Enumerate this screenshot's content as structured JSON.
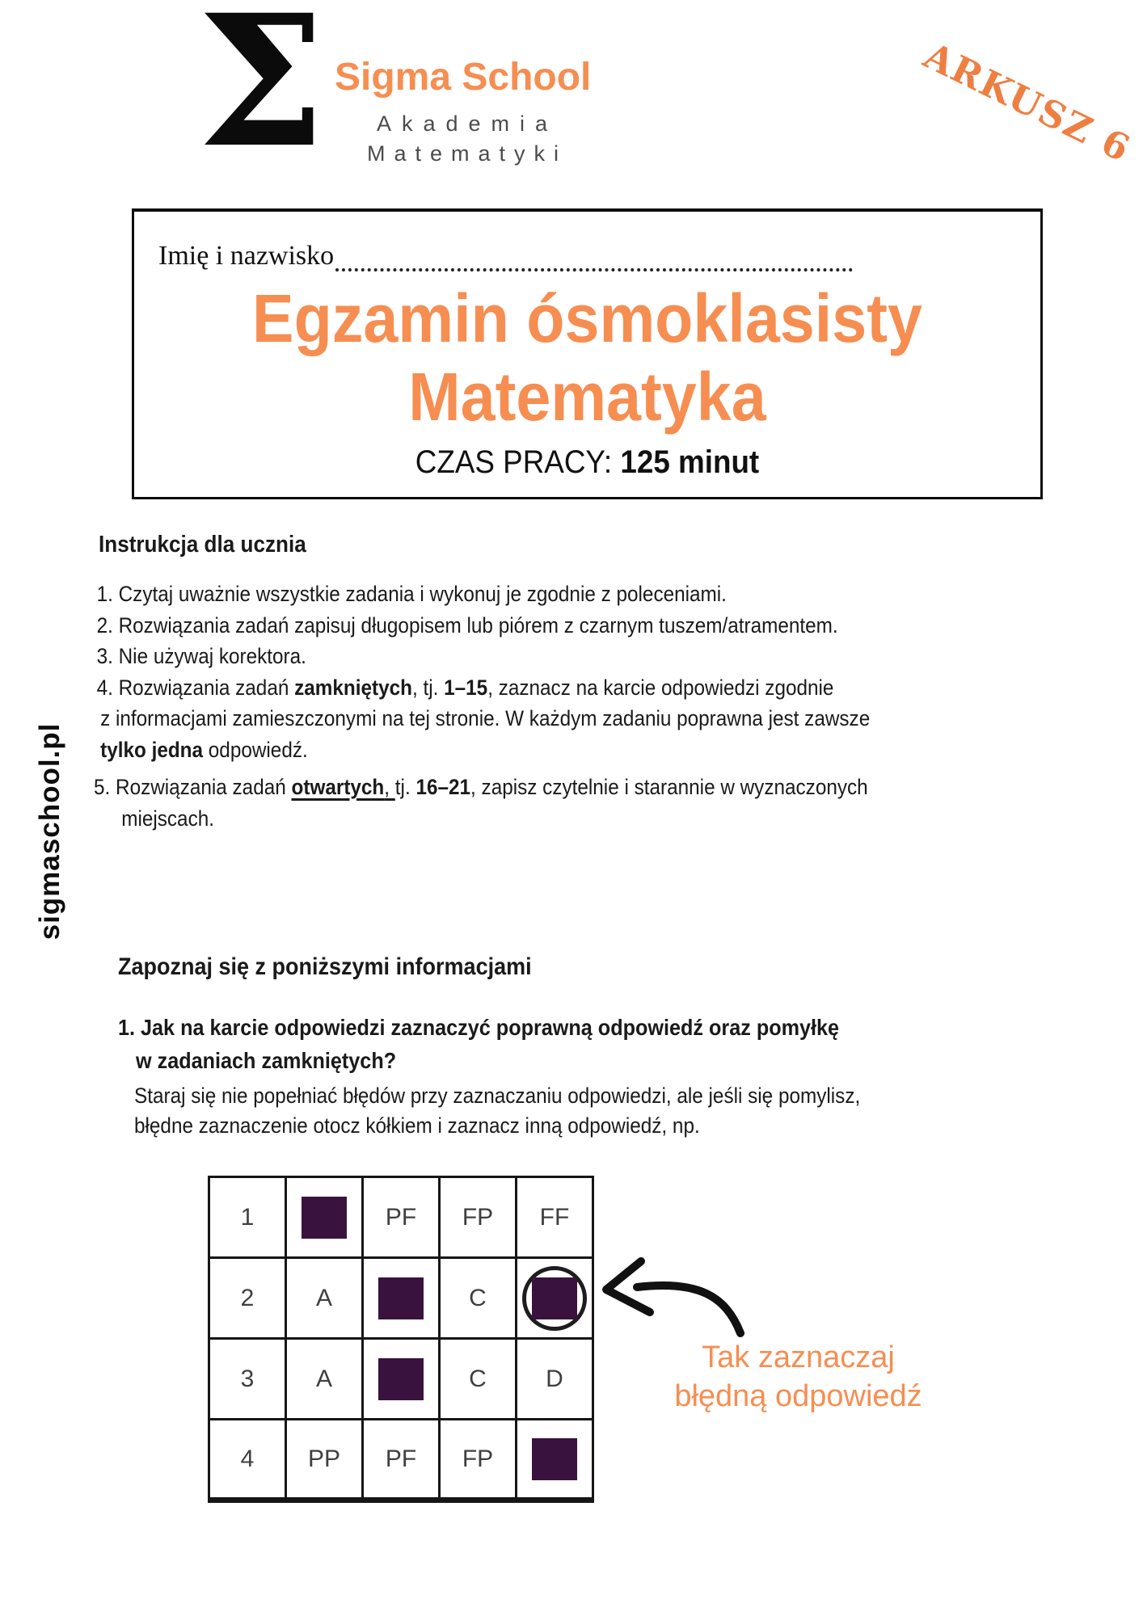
{
  "colors": {
    "accent": "#F68E52",
    "arkusz_orange": "#EE7F43",
    "square": "#3A123E",
    "ink": "#1A1A1A",
    "logo_gray": "#4B4B4B",
    "table_text": "#3F3F3F"
  },
  "logo": {
    "sigma_glyph": "Σ",
    "name": "Sigma School",
    "subtitle_line1": "Akademia",
    "subtitle_line2": "Matematyki"
  },
  "corner_badge": {
    "label": "ARKUSZ 6"
  },
  "header_box": {
    "name_label": "Imię i nazwisko",
    "title_line1": "Egzamin ósmoklasisty",
    "title_line2": "Matematyka",
    "time_label": "CZAS PRACY:",
    "time_value": "125 minut"
  },
  "watermark": {
    "site": "sigmaschool.pl"
  },
  "instructions": {
    "heading": "Instrukcja dla ucznia",
    "lines": [
      [
        {
          "t": "1. Czytaj uważnie wszystkie zadania i wykonuj je zgodnie z poleceniami."
        }
      ],
      [
        {
          "t": "2. Rozwiązania zadań zapisuj długopisem lub piórem z czarnym tuszem/atramentem."
        }
      ],
      [
        {
          "t": "3. Nie używaj korektora."
        }
      ],
      [
        {
          "t": "4. Rozwiązania zadań "
        },
        {
          "t": "zamkniętych",
          "b": true
        },
        {
          "t": ", tj. "
        },
        {
          "t": "1–15",
          "b": true
        },
        {
          "t": ", zaznacz na karcie odpowiedzi zgodnie"
        }
      ],
      [
        {
          "t": "z informacjami zamieszczonymi na tej stronie. W każdym zadaniu poprawna jest zawsze"
        }
      ],
      [
        {
          "t": "tylko jedna",
          "b": true
        },
        {
          "t": " odpowiedź."
        }
      ],
      [
        {
          "t": "5. Rozwiązania zadań "
        },
        {
          "t": "otwartych",
          "b": true,
          "u": true
        },
        {
          "t": ", ",
          "u": true
        },
        {
          "t": "tj. "
        },
        {
          "t": "16–21",
          "b": true
        },
        {
          "t": ", zapisz czytelnie i starannie w wyznaczonych"
        }
      ],
      [
        {
          "t": "miejscach."
        }
      ]
    ]
  },
  "info_section": {
    "heading": "Zapoznaj się z poniższymi informacjami",
    "question_line1": "1. Jak na karcie odpowiedzi zaznaczyć poprawną odpowiedź oraz pomyłkę",
    "question_line2": "w zadaniach zamkniętych?",
    "body_line1": "Staraj się nie popełniać błędów przy zaznaczaniu odpowiedzi, ale jeśli się pomylisz,",
    "body_line2": "błędne zaznaczenie otocz kółkiem i zaznacz inną odpowiedź, np."
  },
  "marks_table": {
    "rows": [
      [
        {
          "v": "1"
        },
        {
          "sq": true
        },
        {
          "v": "PF"
        },
        {
          "v": "FP"
        },
        {
          "v": "FF"
        }
      ],
      [
        {
          "v": "2"
        },
        {
          "v": "A"
        },
        {
          "sq": true
        },
        {
          "v": "C"
        },
        {
          "sq": true,
          "circled": true
        }
      ],
      [
        {
          "v": "3"
        },
        {
          "v": "A"
        },
        {
          "sq": true
        },
        {
          "v": "C"
        },
        {
          "v": "D"
        }
      ],
      [
        {
          "v": "4"
        },
        {
          "v": "PP"
        },
        {
          "v": "PF"
        },
        {
          "v": "FP"
        },
        {
          "sq": true
        }
      ]
    ]
  },
  "annotation": {
    "line1": "Tak zaznaczaj",
    "line2": "błędną odpowiedź"
  }
}
